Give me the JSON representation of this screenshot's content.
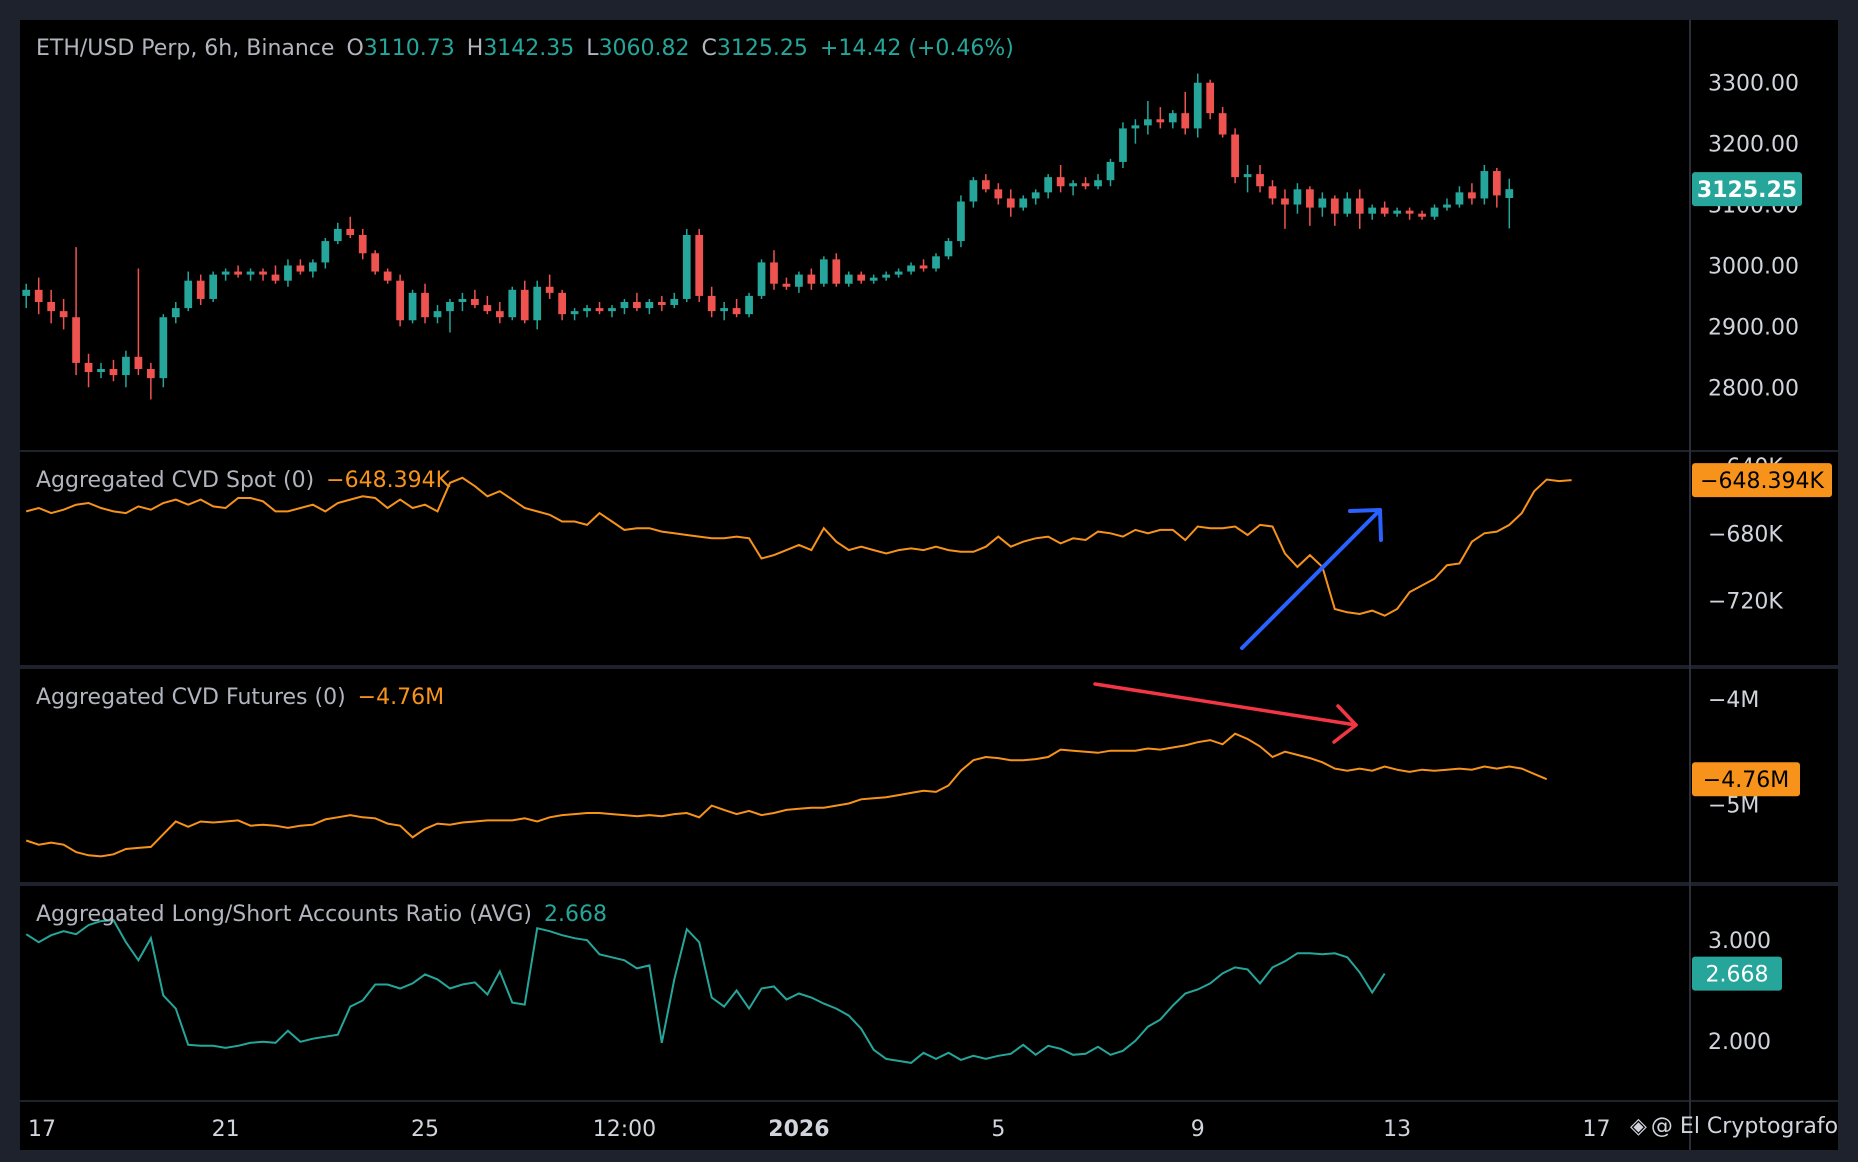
{
  "chart_data": [
    {
      "type": "candlestick",
      "title": "ETH/USD Perp, 6h, Binance",
      "ohlc": {
        "o_label": "O",
        "o": "3110.73",
        "h_label": "H",
        "h": "3142.35",
        "l_label": "L",
        "l": "3060.82",
        "c_label": "C",
        "c": "3125.25",
        "change": "+14.42 (+0.46%)"
      },
      "last_price": "3125.25",
      "ylim": [
        2720,
        3380
      ],
      "yticks": [
        "3300.00",
        "3200.00",
        "3100.00",
        "3000.00",
        "2900.00",
        "2800.00"
      ],
      "candles": [
        [
          2950,
          2970,
          2930,
          2960
        ],
        [
          2960,
          2980,
          2920,
          2940
        ],
        [
          2940,
          2960,
          2905,
          2925
        ],
        [
          2925,
          2945,
          2895,
          2915
        ],
        [
          2915,
          3030,
          2820,
          2840
        ],
        [
          2840,
          2855,
          2800,
          2825
        ],
        [
          2825,
          2840,
          2815,
          2830
        ],
        [
          2830,
          2845,
          2810,
          2820
        ],
        [
          2820,
          2860,
          2800,
          2850
        ],
        [
          2850,
          2995,
          2820,
          2830
        ],
        [
          2830,
          2840,
          2780,
          2815
        ],
        [
          2815,
          2920,
          2800,
          2915
        ],
        [
          2915,
          2940,
          2905,
          2930
        ],
        [
          2930,
          2990,
          2925,
          2975
        ],
        [
          2975,
          2985,
          2935,
          2945
        ],
        [
          2945,
          2990,
          2940,
          2985
        ],
        [
          2985,
          2995,
          2975,
          2990
        ],
        [
          2990,
          3000,
          2980,
          2985
        ],
        [
          2985,
          2995,
          2975,
          2990
        ],
        [
          2990,
          2995,
          2975,
          2985
        ],
        [
          2985,
          3000,
          2970,
          2975
        ],
        [
          2975,
          3010,
          2965,
          3000
        ],
        [
          3000,
          3010,
          2985,
          2990
        ],
        [
          2990,
          3010,
          2980,
          3005
        ],
        [
          3005,
          3045,
          2995,
          3040
        ],
        [
          3040,
          3070,
          3035,
          3060
        ],
        [
          3060,
          3080,
          3045,
          3050
        ],
        [
          3050,
          3060,
          3010,
          3020
        ],
        [
          3020,
          3025,
          2985,
          2990
        ],
        [
          2990,
          2995,
          2970,
          2975
        ],
        [
          2975,
          2985,
          2900,
          2910
        ],
        [
          2910,
          2960,
          2905,
          2955
        ],
        [
          2955,
          2970,
          2905,
          2915
        ],
        [
          2915,
          2935,
          2905,
          2925
        ],
        [
          2925,
          2945,
          2890,
          2940
        ],
        [
          2940,
          2955,
          2925,
          2945
        ],
        [
          2945,
          2960,
          2930,
          2935
        ],
        [
          2935,
          2950,
          2920,
          2925
        ],
        [
          2925,
          2940,
          2905,
          2915
        ],
        [
          2915,
          2965,
          2910,
          2960
        ],
        [
          2960,
          2975,
          2905,
          2910
        ],
        [
          2910,
          2975,
          2895,
          2965
        ],
        [
          2965,
          2985,
          2945,
          2955
        ],
        [
          2955,
          2960,
          2910,
          2920
        ],
        [
          2920,
          2930,
          2910,
          2925
        ],
        [
          2925,
          2935,
          2915,
          2930
        ],
        [
          2930,
          2940,
          2920,
          2925
        ],
        [
          2925,
          2935,
          2915,
          2930
        ],
        [
          2930,
          2945,
          2920,
          2940
        ],
        [
          2940,
          2955,
          2925,
          2930
        ],
        [
          2930,
          2945,
          2920,
          2940
        ],
        [
          2940,
          2950,
          2925,
          2935
        ],
        [
          2935,
          2955,
          2930,
          2945
        ],
        [
          2945,
          3060,
          2940,
          3050
        ],
        [
          3050,
          3060,
          2940,
          2950
        ],
        [
          2950,
          2965,
          2915,
          2925
        ],
        [
          2925,
          2940,
          2910,
          2930
        ],
        [
          2930,
          2945,
          2915,
          2920
        ],
        [
          2920,
          2955,
          2915,
          2950
        ],
        [
          2950,
          3010,
          2945,
          3005
        ],
        [
          3005,
          3025,
          2960,
          2970
        ],
        [
          2970,
          2980,
          2960,
          2965
        ],
        [
          2965,
          2990,
          2955,
          2985
        ],
        [
          2985,
          2995,
          2960,
          2970
        ],
        [
          2970,
          3015,
          2965,
          3010
        ],
        [
          3010,
          3020,
          2965,
          2970
        ],
        [
          2970,
          2990,
          2965,
          2985
        ],
        [
          2985,
          2990,
          2970,
          2975
        ],
        [
          2975,
          2985,
          2970,
          2980
        ],
        [
          2980,
          2990,
          2975,
          2985
        ],
        [
          2985,
          2995,
          2980,
          2990
        ],
        [
          2990,
          3005,
          2985,
          3000
        ],
        [
          3000,
          3010,
          2990,
          2995
        ],
        [
          2995,
          3020,
          2990,
          3015
        ],
        [
          3015,
          3045,
          3010,
          3040
        ],
        [
          3040,
          3115,
          3030,
          3105
        ],
        [
          3105,
          3145,
          3095,
          3140
        ],
        [
          3140,
          3150,
          3120,
          3125
        ],
        [
          3125,
          3135,
          3100,
          3110
        ],
        [
          3110,
          3125,
          3080,
          3095
        ],
        [
          3095,
          3115,
          3090,
          3110
        ],
        [
          3110,
          3125,
          3100,
          3120
        ],
        [
          3120,
          3150,
          3110,
          3145
        ],
        [
          3145,
          3165,
          3120,
          3130
        ],
        [
          3130,
          3140,
          3115,
          3135
        ],
        [
          3135,
          3145,
          3125,
          3130
        ],
        [
          3130,
          3150,
          3125,
          3140
        ],
        [
          3140,
          3175,
          3130,
          3170
        ],
        [
          3170,
          3235,
          3160,
          3225
        ],
        [
          3225,
          3240,
          3200,
          3230
        ],
        [
          3230,
          3270,
          3215,
          3240
        ],
        [
          3240,
          3260,
          3225,
          3235
        ],
        [
          3235,
          3255,
          3225,
          3250
        ],
        [
          3250,
          3285,
          3215,
          3225
        ],
        [
          3225,
          3315,
          3210,
          3300
        ],
        [
          3300,
          3305,
          3240,
          3250
        ],
        [
          3250,
          3260,
          3210,
          3215
        ],
        [
          3215,
          3225,
          3135,
          3145
        ],
        [
          3145,
          3165,
          3120,
          3150
        ],
        [
          3150,
          3165,
          3120,
          3130
        ],
        [
          3130,
          3140,
          3100,
          3110
        ],
        [
          3110,
          3125,
          3060,
          3100
        ],
        [
          3100,
          3135,
          3085,
          3125
        ],
        [
          3125,
          3130,
          3065,
          3095
        ],
        [
          3095,
          3120,
          3080,
          3110
        ],
        [
          3110,
          3115,
          3065,
          3085
        ],
        [
          3085,
          3120,
          3080,
          3110
        ],
        [
          3110,
          3125,
          3060,
          3085
        ],
        [
          3085,
          3100,
          3075,
          3095
        ],
        [
          3095,
          3105,
          3080,
          3085
        ],
        [
          3085,
          3095,
          3080,
          3090
        ],
        [
          3090,
          3095,
          3075,
          3085
        ],
        [
          3085,
          3090,
          3075,
          3080
        ],
        [
          3080,
          3100,
          3075,
          3095
        ],
        [
          3095,
          3110,
          3090,
          3100
        ],
        [
          3100,
          3130,
          3095,
          3120
        ],
        [
          3120,
          3135,
          3100,
          3110
        ],
        [
          3110,
          3165,
          3100,
          3155
        ],
        [
          3155,
          3160,
          3095,
          3115
        ],
        [
          3110.73,
          3142.35,
          3060.82,
          3125.25
        ]
      ]
    },
    {
      "type": "line",
      "title": "Aggregated CVD Spot (0)",
      "value_label": "−648.394K",
      "ylim": [
        -750,
        -640
      ],
      "yticks": [
        {
          "label": "−640K",
          "v": -640
        },
        {
          "label": "−680K",
          "v": -680
        },
        {
          "label": "−720K",
          "v": -720
        }
      ],
      "series": [
        {
          "values": [
            -667,
            -665,
            -668,
            -666,
            -663,
            -662,
            -665,
            -667,
            -668,
            -664,
            -666,
            -662,
            -660,
            -663,
            -660,
            -664,
            -665,
            -659,
            -659,
            -661,
            -667,
            -667,
            -665,
            -663,
            -667,
            -662,
            -660,
            -658,
            -659,
            -665,
            -660,
            -665,
            -663,
            -667,
            -650,
            -647,
            -652,
            -658,
            -655,
            -660,
            -665,
            -667,
            -669,
            -673,
            -673,
            -675,
            -668,
            -673,
            -678,
            -677,
            -677,
            -679,
            -680,
            -681,
            -682,
            -683,
            -683,
            -682,
            -683,
            -695,
            -693,
            -690,
            -687,
            -690,
            -677,
            -685,
            -690,
            -688,
            -690,
            -692,
            -690,
            -689,
            -690,
            -688,
            -690,
            -691,
            -691,
            -688,
            -682,
            -688,
            -685,
            -683,
            -682,
            -686,
            -683,
            -684,
            -679,
            -680,
            -682,
            -678,
            -680,
            -678,
            -678,
            -684,
            -676,
            -677,
            -677,
            -676,
            -681,
            -675,
            -676,
            -692,
            -700,
            -693,
            -700,
            -725,
            -727,
            -728,
            -726,
            -729,
            -725,
            -715,
            -711,
            -707,
            -699,
            -698,
            -685,
            -680,
            -679,
            -675,
            -668,
            -655,
            -648,
            -649,
            -648.394
          ]
        }
      ]
    },
    {
      "type": "line",
      "title": "Aggregated CVD Futures (0)",
      "value_label": "−4.76M",
      "ylim": [
        -5.6,
        -3.85
      ],
      "yticks": [
        {
          "label": "−4M",
          "v": -4.0
        },
        {
          "label": "−5M",
          "v": -5.0
        }
      ],
      "series": [
        {
          "values": [
            -5.34,
            -5.38,
            -5.36,
            -5.38,
            -5.45,
            -5.48,
            -5.49,
            -5.47,
            -5.42,
            -5.41,
            -5.4,
            -5.28,
            -5.16,
            -5.21,
            -5.16,
            -5.17,
            -5.16,
            -5.15,
            -5.2,
            -5.19,
            -5.2,
            -5.22,
            -5.2,
            -5.19,
            -5.14,
            -5.12,
            -5.1,
            -5.12,
            -5.13,
            -5.18,
            -5.2,
            -5.31,
            -5.23,
            -5.18,
            -5.19,
            -5.17,
            -5.16,
            -5.15,
            -5.15,
            -5.15,
            -5.13,
            -5.16,
            -5.12,
            -5.1,
            -5.09,
            -5.08,
            -5.08,
            -5.09,
            -5.1,
            -5.11,
            -5.1,
            -5.11,
            -5.09,
            -5.08,
            -5.12,
            -5.01,
            -5.05,
            -5.09,
            -5.06,
            -5.1,
            -5.08,
            -5.05,
            -5.04,
            -5.03,
            -5.03,
            -5.01,
            -4.99,
            -4.95,
            -4.94,
            -4.93,
            -4.91,
            -4.89,
            -4.87,
            -4.88,
            -4.82,
            -4.68,
            -4.58,
            -4.55,
            -4.56,
            -4.58,
            -4.58,
            -4.57,
            -4.55,
            -4.48,
            -4.49,
            -4.5,
            -4.51,
            -4.49,
            -4.49,
            -4.49,
            -4.47,
            -4.48,
            -4.46,
            -4.44,
            -4.41,
            -4.39,
            -4.43,
            -4.33,
            -4.38,
            -4.45,
            -4.55,
            -4.5,
            -4.53,
            -4.56,
            -4.6,
            -4.66,
            -4.68,
            -4.66,
            -4.68,
            -4.64,
            -4.67,
            -4.69,
            -4.67,
            -4.68,
            -4.67,
            -4.66,
            -4.67,
            -4.64,
            -4.66,
            -4.64,
            -4.66,
            -4.71,
            -4.76
          ]
        }
      ]
    },
    {
      "type": "line",
      "title": "Aggregated Long/Short Accounts Ratio (AVG)",
      "value_label": "2.668",
      "ylim": [
        1.55,
        3.4
      ],
      "yticks": [
        {
          "label": "3.000",
          "v": 3.0
        },
        {
          "label": "2.000",
          "v": 2.0
        }
      ],
      "series": [
        {
          "values": [
            3.06,
            2.98,
            3.05,
            3.09,
            3.06,
            3.15,
            3.19,
            3.2,
            2.98,
            2.8,
            3.02,
            2.45,
            2.32,
            1.96,
            1.95,
            1.95,
            1.93,
            1.95,
            1.98,
            1.99,
            1.98,
            2.1,
            1.99,
            2.02,
            2.04,
            2.06,
            2.34,
            2.4,
            2.56,
            2.56,
            2.52,
            2.57,
            2.66,
            2.61,
            2.52,
            2.56,
            2.58,
            2.46,
            2.69,
            2.38,
            2.36,
            3.12,
            3.09,
            3.05,
            3.02,
            3.0,
            2.86,
            2.83,
            2.8,
            2.72,
            2.75,
            1.98,
            2.61,
            3.11,
            2.98,
            2.43,
            2.34,
            2.5,
            2.32,
            2.52,
            2.54,
            2.41,
            2.47,
            2.43,
            2.37,
            2.32,
            2.25,
            2.12,
            1.91,
            1.82,
            1.8,
            1.78,
            1.88,
            1.82,
            1.88,
            1.81,
            1.85,
            1.82,
            1.85,
            1.87,
            1.96,
            1.86,
            1.95,
            1.92,
            1.86,
            1.87,
            1.94,
            1.86,
            1.9,
            2.0,
            2.14,
            2.21,
            2.35,
            2.47,
            2.51,
            2.57,
            2.67,
            2.73,
            2.71,
            2.57,
            2.73,
            2.79,
            2.87,
            2.87,
            2.86,
            2.87,
            2.83,
            2.68,
            2.48,
            2.668
          ]
        }
      ]
    }
  ],
  "x_axis": {
    "tick_labels": [
      {
        "label": "17",
        "i": 0,
        "bold": false
      },
      {
        "label": "21",
        "i": 16,
        "bold": false
      },
      {
        "label": "25",
        "i": 32,
        "bold": false
      },
      {
        "label": "12:00",
        "i": 48,
        "bold": false
      },
      {
        "label": "2026",
        "i": 62,
        "bold": true
      },
      {
        "label": "5",
        "i": 78,
        "bold": false
      },
      {
        "label": "9",
        "i": 94,
        "bold": false
      },
      {
        "label": "13",
        "i": 110,
        "bold": false
      },
      {
        "label": "17",
        "i": 126,
        "bold": false
      }
    ],
    "total_slots": 134
  },
  "annotations": {
    "spot_arrow_color": "#2962ff",
    "futures_arrow_color": "#f23645"
  },
  "colors": {
    "background": "#000000",
    "frame": "#1e222d",
    "grid": "#2a2e39",
    "text": "#d1d4dc",
    "up": "#26a69a",
    "down": "#ef5350",
    "cvd": "#f7931a",
    "ratio": "#26a69a",
    "price_tag": "#26a69a",
    "cvd_tag": "#f7931a",
    "ratio_tag": "#26a69a"
  },
  "watermark": "@ El Cryptografo",
  "watermark_icon": "binance-diamond-icon"
}
